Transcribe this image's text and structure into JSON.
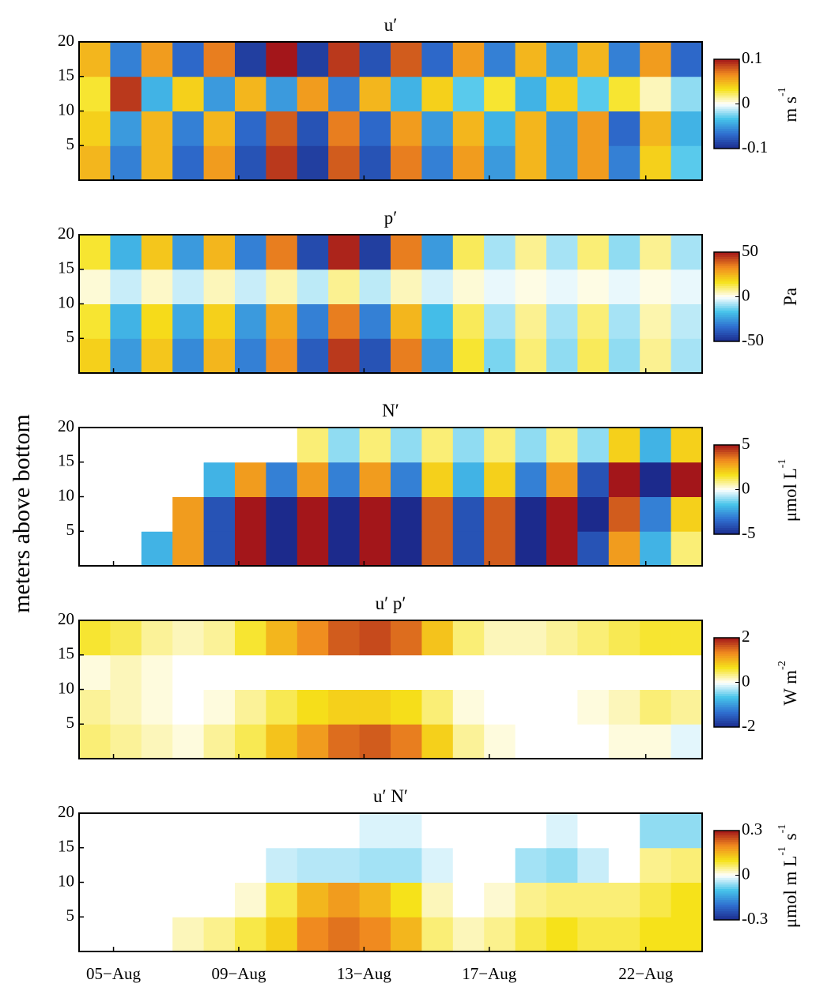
{
  "ylabel": "meters above bottom",
  "colormap": [
    "#1c2a8c",
    "#2f6fd0",
    "#46c4ea",
    "#ffffff",
    "#f6e21a",
    "#f08a1f",
    "#a3161a"
  ],
  "chart_data": [
    {
      "type": "heatmap",
      "title": "u′",
      "xlim": [
        3.9,
        23.8
      ],
      "xticks": [
        5,
        9,
        13,
        17,
        22
      ],
      "ylim": [
        0,
        20
      ],
      "yticks": [
        5,
        10,
        15,
        20
      ],
      "clim": [
        -0.1,
        0.1
      ],
      "cticks": [
        -0.1,
        0,
        0.1
      ],
      "clabel": [
        {
          "t": "m s",
          "s": "-1"
        }
      ],
      "z": [
        [
          0.05,
          -0.06,
          0.05,
          -0.07,
          0.06,
          -0.08,
          0.09,
          -0.09,
          0.08,
          -0.08,
          0.07,
          -0.06,
          0.06,
          -0.05,
          0.05,
          -0.05,
          0.06,
          -0.06,
          0.04,
          -0.03
        ],
        [
          0.04,
          -0.05,
          0.05,
          -0.06,
          0.05,
          -0.07,
          0.08,
          -0.08,
          0.07,
          -0.07,
          0.06,
          -0.05,
          0.05,
          -0.04,
          0.05,
          -0.05,
          0.06,
          -0.07,
          0.05,
          -0.04
        ],
        [
          0.03,
          0.09,
          -0.04,
          0.04,
          -0.05,
          0.05,
          -0.05,
          0.06,
          -0.06,
          0.05,
          -0.04,
          0.04,
          -0.03,
          0.03,
          -0.04,
          0.04,
          -0.03,
          0.03,
          0.01,
          -0.02
        ],
        [
          0.05,
          -0.06,
          0.06,
          -0.07,
          0.07,
          -0.09,
          0.1,
          -0.09,
          0.09,
          -0.08,
          0.08,
          -0.07,
          0.06,
          -0.06,
          0.05,
          -0.05,
          0.05,
          -0.06,
          0.06,
          -0.07
        ]
      ]
    },
    {
      "type": "heatmap",
      "title": "p′",
      "xlim": [
        3.9,
        23.8
      ],
      "xticks": [
        5,
        9,
        13,
        17,
        22
      ],
      "ylim": [
        0,
        20
      ],
      "yticks": [
        5,
        10,
        15,
        20
      ],
      "clim": [
        -50,
        50
      ],
      "cticks": [
        -50,
        0,
        50
      ],
      "clabel": [
        {
          "t": "Pa"
        }
      ],
      "z": [
        [
          20,
          -25,
          22,
          -28,
          25,
          -30,
          32,
          -38,
          45,
          -40,
          35,
          -25,
          15,
          -12,
          10,
          -10,
          12,
          -10,
          8,
          -8
        ],
        [
          15,
          -20,
          18,
          -22,
          20,
          -25,
          28,
          -30,
          35,
          -30,
          25,
          -18,
          12,
          -8,
          8,
          -8,
          10,
          -8,
          6,
          -6
        ],
        [
          3,
          -5,
          4,
          -5,
          5,
          -5,
          6,
          -6,
          8,
          -6,
          5,
          -4,
          3,
          -2,
          2,
          -2,
          2,
          -2,
          2,
          -2
        ],
        [
          15,
          -20,
          22,
          -25,
          25,
          -30,
          35,
          -42,
          48,
          -45,
          35,
          -25,
          12,
          -8,
          8,
          -8,
          10,
          -10,
          8,
          -8
        ]
      ]
    },
    {
      "type": "heatmap",
      "title": "N′",
      "xlim": [
        3.9,
        23.8
      ],
      "xticks": [
        5,
        9,
        13,
        17,
        22
      ],
      "ylim": [
        0,
        20
      ],
      "yticks": [
        5,
        10,
        15,
        20
      ],
      "clim": [
        -5,
        5
      ],
      "cticks": [
        -5,
        0,
        5
      ],
      "clabel": [
        {
          "t": "μmol L",
          "s": "-1"
        }
      ],
      "z": [
        [
          0,
          0,
          -2,
          3,
          -4,
          5,
          -5,
          5,
          -5,
          5,
          -5,
          4,
          -4,
          4,
          -5,
          5,
          -4,
          3,
          -2,
          1
        ],
        [
          0,
          0,
          0,
          3,
          -4,
          5,
          -5,
          5,
          -5,
          5,
          -5,
          4,
          -4,
          4,
          -5,
          5,
          -5,
          4,
          -3,
          2
        ],
        [
          0,
          0,
          0,
          0,
          -2,
          3,
          -3,
          3,
          -3,
          3,
          -3,
          2,
          -2,
          2,
          -3,
          3,
          -4,
          5,
          -5,
          5
        ],
        [
          0,
          0,
          0,
          0,
          0,
          0,
          0,
          1,
          -1,
          1,
          -1,
          1,
          -1,
          1,
          -1,
          1,
          -1,
          2,
          -2,
          2
        ]
      ]
    },
    {
      "type": "heatmap",
      "title": "u′ p′",
      "xlim": [
        3.9,
        23.8
      ],
      "xticks": [
        5,
        9,
        13,
        17,
        22
      ],
      "ylim": [
        0,
        20
      ],
      "yticks": [
        5,
        10,
        15,
        20
      ],
      "clim": [
        -2,
        2
      ],
      "cticks": [
        -2,
        0,
        2
      ],
      "clabel": [
        {
          "t": "W m",
          "s": "-2"
        }
      ],
      "z": [
        [
          0.4,
          0.3,
          0.2,
          0.1,
          0.3,
          0.5,
          0.9,
          1.2,
          1.5,
          1.6,
          1.4,
          0.8,
          0.3,
          0.1,
          0,
          0,
          0,
          0.1,
          0.1,
          -0.1
        ],
        [
          0.3,
          0.2,
          0.1,
          0,
          0.1,
          0.3,
          0.5,
          0.7,
          0.8,
          0.8,
          0.7,
          0.4,
          0.1,
          0,
          0,
          0,
          0.1,
          0.2,
          0.4,
          0.3
        ],
        [
          0.1,
          0.2,
          0.1,
          0,
          0,
          0,
          0,
          0,
          0,
          0,
          0,
          0,
          0,
          0,
          0,
          0,
          0,
          0,
          0,
          0
        ],
        [
          0.6,
          0.5,
          0.3,
          0.2,
          0.3,
          0.6,
          1,
          1.3,
          1.6,
          1.7,
          1.5,
          0.9,
          0.4,
          0.2,
          0.2,
          0.3,
          0.4,
          0.5,
          0.6,
          0.6
        ]
      ]
    },
    {
      "type": "heatmap",
      "title": "u′ N′",
      "xlim": [
        3.9,
        23.8
      ],
      "xticks": [
        {
          "value": 5,
          "label": "05−Aug"
        },
        {
          "value": 9,
          "label": "09−Aug"
        },
        {
          "value": 13,
          "label": "13−Aug"
        },
        {
          "value": 17,
          "label": "17−Aug"
        },
        {
          "value": 22,
          "label": "22−Aug"
        }
      ],
      "ylim": [
        0,
        20
      ],
      "yticks": [
        5,
        10,
        15,
        20
      ],
      "clim": [
        -0.3,
        0.3
      ],
      "cticks": [
        -0.3,
        0,
        0.3
      ],
      "clabel": [
        {
          "t": "μmol m L",
          "s": "-1"
        },
        {
          "t": " s",
          "s": "-1"
        }
      ],
      "z": [
        [
          0,
          0,
          0,
          0.03,
          0.05,
          0.08,
          0.12,
          0.2,
          0.22,
          0.2,
          0.15,
          0.06,
          0.03,
          0.05,
          0.08,
          0.1,
          0.08,
          0.08,
          0.1,
          0.1
        ],
        [
          0,
          0,
          0,
          0,
          0,
          0.02,
          0.08,
          0.15,
          0.18,
          0.15,
          0.1,
          0.03,
          0,
          0.02,
          0.05,
          0.06,
          0.06,
          0.06,
          0.08,
          0.1
        ],
        [
          0,
          0,
          0,
          0,
          0,
          0,
          -0.03,
          -0.04,
          -0.04,
          -0.05,
          -0.05,
          -0.02,
          0,
          0,
          -0.05,
          -0.06,
          -0.03,
          0,
          0.05,
          0.06
        ],
        [
          0,
          0,
          0,
          0,
          0,
          0,
          0,
          0,
          0,
          -0.02,
          -0.02,
          0,
          0,
          0,
          0,
          -0.02,
          0,
          0,
          -0.06,
          -0.06
        ]
      ]
    }
  ]
}
